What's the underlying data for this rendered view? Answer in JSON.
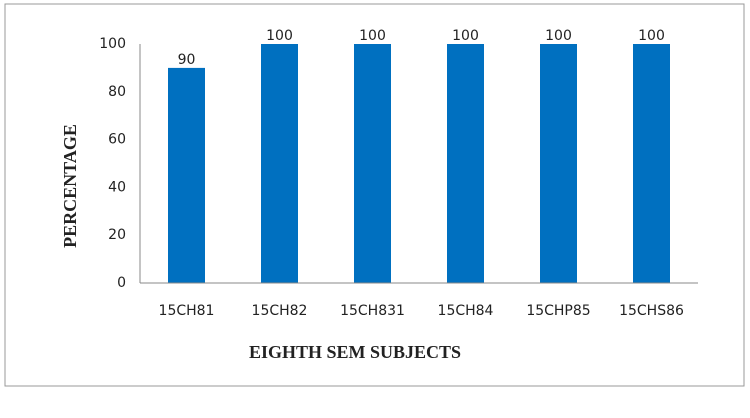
{
  "chart_data": {
    "type": "bar",
    "x_label": "EIGHTH SEM SUBJECTS",
    "y_label": "PERCENTAGE",
    "categories": [
      "15CH81",
      "15CH82",
      "15CH831",
      "15CH84",
      "15CHP85",
      "15CHS86"
    ],
    "values": [
      90,
      100,
      100,
      100,
      100,
      100
    ],
    "color": "#0070c0",
    "ylim": [
      0,
      100
    ],
    "yticks": [
      0,
      20,
      40,
      60,
      80,
      100
    ],
    "grid": false
  }
}
